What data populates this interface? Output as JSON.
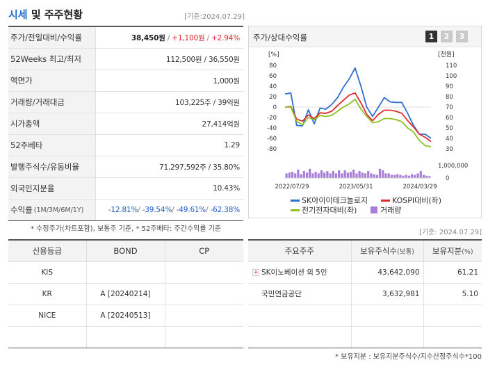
{
  "title": {
    "main": "시세",
    "sub": " 및 주주현황",
    "date": "[기준:2024.07.29]"
  },
  "info_rows": [
    {
      "label": "주가/전일대비/수익률",
      "price": "38,450원",
      "change": "+1,100원",
      "rate": "+2.94%"
    },
    {
      "label": "52Weeks 최고/최저",
      "value": "112,500원 / 36,550원"
    },
    {
      "label": "액면가",
      "value": "1,000원"
    },
    {
      "label": "거래량/거래대금",
      "value": "103,225주 / 39억원"
    },
    {
      "label": "시가총액",
      "value": "27,414억원"
    },
    {
      "label": "52주베타",
      "value": "1.29"
    },
    {
      "label": "발행주식수/유동비율",
      "value": "71,297,592주 / 35.80%"
    },
    {
      "label": "외국인지분율",
      "value": "10.43%"
    },
    {
      "label": "수익률",
      "label_small": "(1M/3M/6M/1Y)",
      "r1": "-12.81%",
      "r2": "-39.54%",
      "r3": "-49.61%",
      "r4": "-62.38%"
    }
  ],
  "footnote1": "* 수정주가(차트포함), 보통주 기준, * 52주베타: 주간수익률 기준",
  "chart_panel": {
    "title": "주가/상대수익률",
    "pages": [
      "1",
      "2",
      "3"
    ],
    "left_unit": "[%]",
    "right_unit": "[천원]",
    "vol_unit": "1,000,000",
    "vol_zero": "0",
    "legend": [
      "SK아이이테크놀로지",
      "KOSPI대비(좌)",
      "전기전자대비(좌)",
      "거래량"
    ],
    "colors": {
      "price": "#2f6fd0",
      "kospi": "#e0292f",
      "sector": "#8cc022",
      "volume": "#a97ed9"
    }
  },
  "chart_data": {
    "type": "line",
    "x_labels": [
      "2022/07/29",
      "2023/05/31",
      "2024/03/29"
    ],
    "left_axis": {
      "ylim": [
        -80,
        80
      ],
      "ticks": [
        "80",
        "60",
        "40",
        "20",
        "0",
        "-20",
        "-40",
        "-60",
        "-80"
      ]
    },
    "right_axis": {
      "ylim": [
        30,
        110
      ],
      "ticks": [
        "110",
        "100",
        "90",
        "80",
        "70",
        "60",
        "50",
        "40",
        "30"
      ]
    },
    "series": [
      {
        "name": "SK아이이테크놀로지",
        "axis": "left",
        "values": [
          25,
          27,
          -35,
          -36,
          -5,
          -32,
          -2,
          -4,
          5,
          18,
          38,
          54,
          75,
          40,
          0,
          -18,
          0,
          18,
          10,
          9,
          9,
          -12,
          -35,
          -52,
          -52,
          -60
        ]
      },
      {
        "name": "KOSPI대비(좌)",
        "axis": "left",
        "values": [
          0,
          1,
          -23,
          -27,
          -15,
          -22,
          -11,
          -12,
          -8,
          3,
          13,
          23,
          27,
          8,
          -14,
          -26,
          -14,
          -6,
          -6,
          -8,
          -12,
          -26,
          -38,
          -52,
          -58,
          -66
        ]
      },
      {
        "name": "전기전자대비(좌)",
        "axis": "left",
        "values": [
          0,
          0,
          -27,
          -34,
          -20,
          -24,
          -16,
          -18,
          -16,
          -8,
          0,
          6,
          15,
          -4,
          -18,
          -30,
          -28,
          -22,
          -22,
          -24,
          -28,
          -40,
          -48,
          -64,
          -74,
          -76
        ]
      },
      {
        "name": "거래량",
        "axis": "volume",
        "values": [
          0.3,
          0.35,
          0.4,
          0.3,
          0.55,
          0.25,
          0.45,
          0.35,
          0.6,
          0.3,
          0.4,
          0.3,
          0.5,
          0.35,
          0.45,
          0.3,
          0.45,
          0.3,
          0.5,
          0.3,
          0.5,
          0.35,
          0.4,
          0.55,
          0.3,
          0.45,
          0.35,
          0.3,
          0.45,
          0.3,
          0.25,
          0.2,
          0.6,
          0.5,
          0.3,
          0.3,
          0.2,
          0.2,
          0.25,
          0.2,
          0.15,
          0.2,
          0.15,
          0.25,
          0.2,
          0.3,
          0.45,
          0.2,
          0.15,
          0.12
        ]
      }
    ]
  },
  "date2": "[기준: 2024.07.29]",
  "credit_table": {
    "headers": [
      "신용등급",
      "BOND",
      "CP"
    ],
    "rows": [
      [
        "KIS",
        "",
        ""
      ],
      [
        "KR",
        "A [20240214]",
        ""
      ],
      [
        "NICE",
        "A [20240513]",
        ""
      ],
      [
        "",
        "",
        ""
      ]
    ]
  },
  "holder_table": {
    "headers": [
      "주요주주",
      "보유주식수",
      "(보통)",
      "보유지분",
      "(%)"
    ],
    "rows": [
      {
        "name": "SK이노베이션 외 5인",
        "expand": "+",
        "shares": "43,642,090",
        "pct": "61.21"
      },
      {
        "name": "국민연금공단",
        "expand": "",
        "shares": "3,632,981",
        "pct": "5.10"
      },
      {
        "name": "",
        "expand": "",
        "shares": "",
        "pct": ""
      },
      {
        "name": "",
        "expand": "",
        "shares": "",
        "pct": ""
      }
    ]
  },
  "footnote2": "* 보유지분 : 보유지분주식수/지수산정주식수*100"
}
